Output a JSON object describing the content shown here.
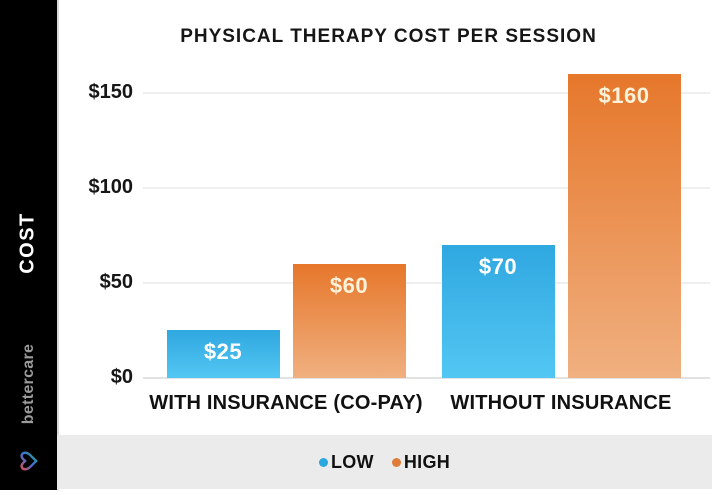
{
  "sidebar": {
    "axis_label": "COST",
    "brand": "bettercare",
    "background": "#000000",
    "brand_color": "#9b9b9b",
    "logo_icon": "heart-icon",
    "logo_colors": {
      "red": "#d94f5c",
      "blue": "#3b6fd4",
      "teal": "#2aa985"
    }
  },
  "chart_data": {
    "type": "bar",
    "title": "PHYSICAL THERAPY COST PER SESSION",
    "categories": [
      "WITH INSURANCE (CO-PAY)",
      "WITHOUT INSURANCE"
    ],
    "series": [
      {
        "name": "LOW",
        "values": [
          25,
          70
        ],
        "labels": [
          "$25",
          "$70"
        ],
        "color_top": "#2fa7e0",
        "color_bottom": "#53c7f3",
        "label_color": "#ffffff"
      },
      {
        "name": "HIGH",
        "values": [
          60,
          160
        ],
        "labels": [
          "$60",
          "$160"
        ],
        "color_top": "#e6772b",
        "color_bottom": "#f0b080",
        "label_color": "#fdf3da"
      }
    ],
    "ylabel": "COST",
    "ylim": [
      0,
      170
    ],
    "yticks": [
      0,
      50,
      100,
      150
    ],
    "ytick_labels": [
      "$0",
      "$50",
      "$100",
      "$150"
    ],
    "grid": true,
    "legend_position": "bottom"
  },
  "legend": {
    "background": "#ebebeb",
    "items": [
      {
        "label": "LOW",
        "color": "#2aa7df"
      },
      {
        "label": "HIGH",
        "color": "#e07c3a"
      }
    ]
  }
}
